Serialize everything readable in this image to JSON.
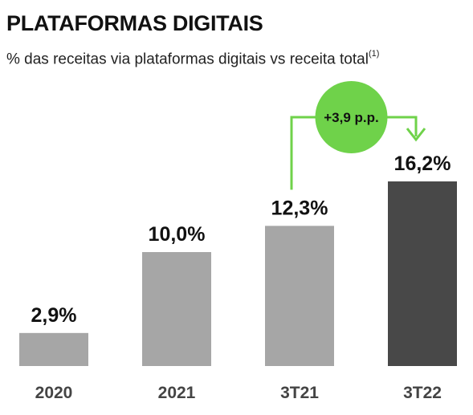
{
  "header": {
    "title": "PLATAFORMAS DIGITAIS",
    "subtitle": "% das receitas via plataformas digitais vs receita total",
    "subtitle_note": "(1)"
  },
  "chart_data": {
    "type": "bar",
    "categories": [
      "2020",
      "2021",
      "3T21",
      "3T22"
    ],
    "values": [
      2.9,
      10.0,
      12.3,
      16.2
    ],
    "data_labels": [
      "2,9%",
      "10,0%",
      "12,3%",
      "16,2%"
    ],
    "bar_colors": [
      "#a6a6a6",
      "#a6a6a6",
      "#a6a6a6",
      "#484848"
    ],
    "ylim": [
      0,
      16.2
    ],
    "grid": false,
    "annotation": {
      "text": "+3,9 p.p.",
      "from": "3T21",
      "to": "3T22",
      "color": "#6fd24a"
    }
  }
}
